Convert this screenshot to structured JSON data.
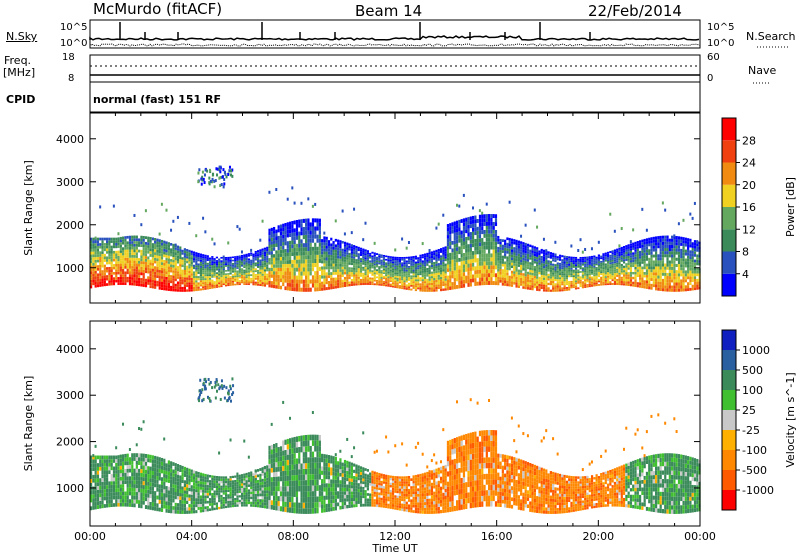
{
  "header": {
    "station": "McMurdo (fitACF)",
    "beam": "Beam 14",
    "date": "22/Feb/2014"
  },
  "top_panel": {
    "nsky_label": "N.Sky",
    "nsearch_label": "N.Search",
    "ticks_left": [
      "10^5",
      "10^0"
    ],
    "ticks_right": [
      "10^5",
      "10^0"
    ]
  },
  "freq_panel": {
    "freq_label_line1": "Freq.",
    "freq_label_line2": "[MHz]",
    "nave_label": "Nave",
    "ticks_left": [
      "18",
      "8"
    ],
    "ticks_right": [
      "60",
      "0"
    ]
  },
  "cpid_panel": {
    "cpid_label": "CPID",
    "cpid_text": "normal (fast) 151 RF"
  },
  "colors": {
    "power": [
      "#0000ff",
      "#2a52be",
      "#3a8a5a",
      "#64a860",
      "#f0d020",
      "#f08a10",
      "#f04010",
      "#ff0000"
    ],
    "velocity": [
      "#ff0000",
      "#ff5a00",
      "#ff8800",
      "#ffb000",
      "#c8c8c8",
      "#40c030",
      "#3a8a5a",
      "#2a60a0",
      "#1020c0"
    ]
  },
  "chart_data": [
    {
      "type": "heatmap",
      "name_shown": "",
      "x_axis": {
        "ticks": [
          "00:00",
          "04:00",
          "08:00",
          "12:00",
          "16:00",
          "20:00",
          "00:00"
        ],
        "range_hours": [
          0,
          24
        ],
        "label": "Time UT"
      },
      "y_axis": {
        "label": "Slant Range [km]",
        "ticks": [
          "1000",
          "2000",
          "3000",
          "4000"
        ],
        "range_km": [
          180,
          4600
        ]
      },
      "colorbar": {
        "label": "Power [dB]",
        "ticks": [
          "4",
          "8",
          "12",
          "16",
          "20",
          "24",
          "28"
        ],
        "range": [
          0,
          32
        ]
      },
      "description_bands": [
        {
          "hours": [
            0,
            4
          ],
          "range_km": [
            500,
            1900
          ],
          "level": "high"
        },
        {
          "hours": [
            4,
            24
          ],
          "range_km": [
            550,
            2100
          ],
          "level": "medium-high"
        }
      ]
    },
    {
      "type": "heatmap",
      "x_axis": {
        "ticks": [
          "00:00",
          "04:00",
          "08:00",
          "12:00",
          "16:00",
          "20:00",
          "00:00"
        ],
        "range_hours": [
          0,
          24
        ],
        "label": "Time UT"
      },
      "y_axis": {
        "label": "Slant Range [km]",
        "ticks": [
          "1000",
          "2000",
          "3000",
          "4000"
        ],
        "range_km": [
          180,
          4600
        ]
      },
      "colorbar": {
        "label": "Velocity [m s^-1]",
        "ticks": [
          "1000",
          "500",
          "100",
          "25",
          "-25",
          "-100",
          "-500",
          "-1000"
        ]
      },
      "description_bands": [
        {
          "hours": [
            0,
            11
          ],
          "range_km": [
            500,
            1800
          ],
          "velocity": "positive"
        },
        {
          "hours": [
            11,
            21
          ],
          "range_km": [
            500,
            1900
          ],
          "velocity": "negative"
        },
        {
          "hours": [
            21,
            24
          ],
          "range_km": [
            500,
            1500
          ],
          "velocity": "positive"
        }
      ]
    }
  ]
}
